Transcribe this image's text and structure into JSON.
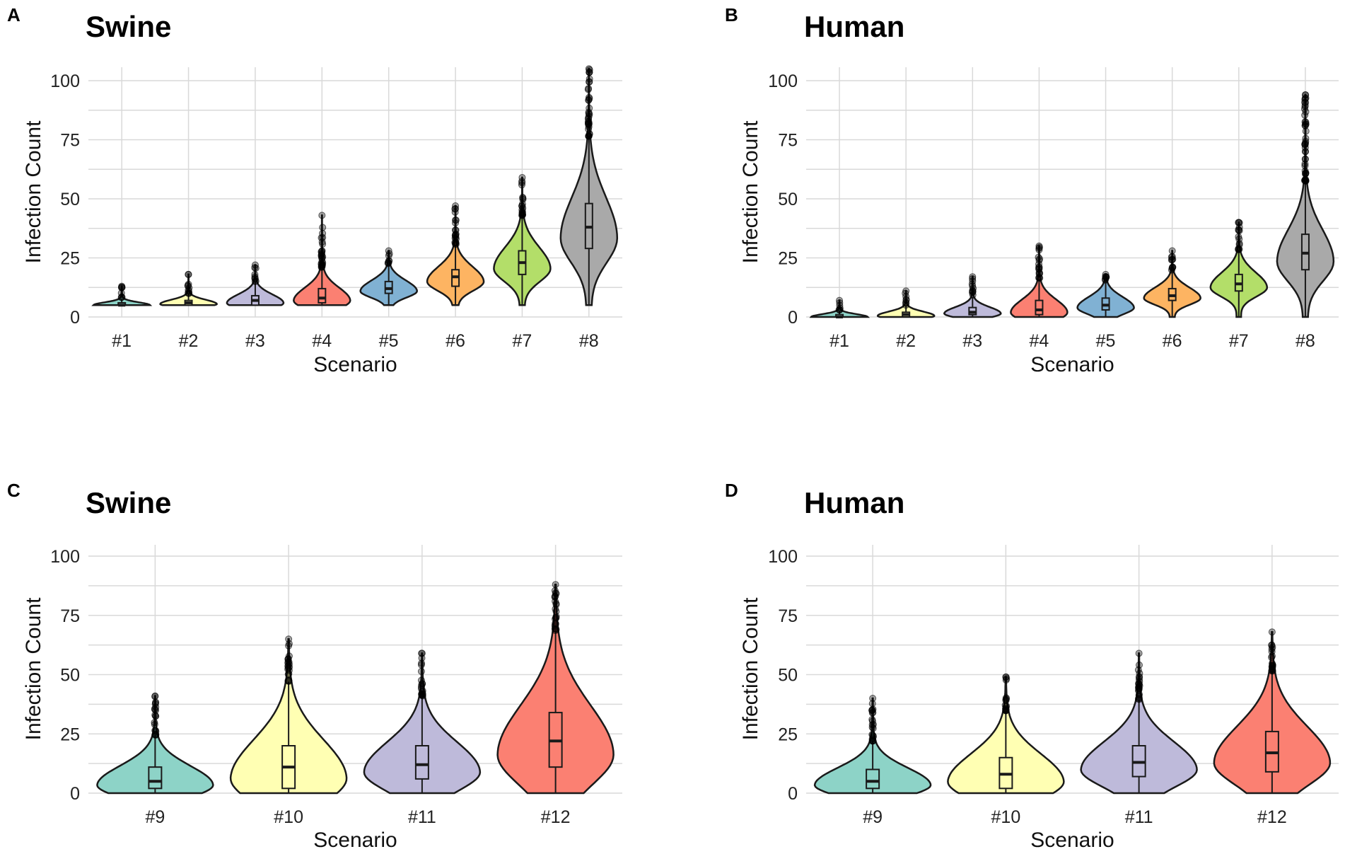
{
  "colors": {
    "teal": "#8dd3c7",
    "yellow": "#ffffb3",
    "lavender": "#bebada",
    "red": "#fb8072",
    "blue": "#80b1d3",
    "orange": "#fdb462",
    "green": "#b3de69",
    "gray": "#a9a9a9",
    "outline": "#1a1a1a"
  },
  "chart_data": [
    {
      "panel": "A",
      "type": "violin",
      "title": "Swine",
      "xlabel": "Scenario",
      "ylabel": "Infection Count",
      "ylim": [
        0,
        105
      ],
      "yticks": [
        0,
        25,
        50,
        75,
        100
      ],
      "categories": [
        "#1",
        "#2",
        "#3",
        "#4",
        "#5",
        "#6",
        "#7",
        "#8"
      ],
      "series": [
        {
          "cat": "#1",
          "min": 5,
          "q1": 5,
          "median": 5,
          "q3": 6,
          "max": 13,
          "fill": "#8dd3c7"
        },
        {
          "cat": "#2",
          "min": 5,
          "q1": 5,
          "median": 6,
          "q3": 7,
          "max": 18,
          "fill": "#ffffb3"
        },
        {
          "cat": "#3",
          "min": 5,
          "q1": 5,
          "median": 7,
          "q3": 9,
          "max": 22,
          "fill": "#bebada"
        },
        {
          "cat": "#4",
          "min": 5,
          "q1": 6,
          "median": 8,
          "q3": 12,
          "max": 43,
          "fill": "#fb8072"
        },
        {
          "cat": "#5",
          "min": 5,
          "q1": 10,
          "median": 12,
          "q3": 15,
          "max": 28,
          "fill": "#80b1d3"
        },
        {
          "cat": "#6",
          "min": 5,
          "q1": 13,
          "median": 17,
          "q3": 20,
          "max": 47,
          "fill": "#fdb462"
        },
        {
          "cat": "#7",
          "min": 5,
          "q1": 18,
          "median": 23,
          "q3": 28,
          "max": 59,
          "fill": "#b3de69"
        },
        {
          "cat": "#8",
          "min": 5,
          "q1": 29,
          "median": 38,
          "q3": 48,
          "max": 105,
          "fill": "#a9a9a9"
        }
      ]
    },
    {
      "panel": "B",
      "type": "violin",
      "title": "Human",
      "xlabel": "Scenario",
      "ylabel": "Infection Count",
      "ylim": [
        0,
        105
      ],
      "yticks": [
        0,
        25,
        50,
        75,
        100
      ],
      "categories": [
        "#1",
        "#2",
        "#3",
        "#4",
        "#5",
        "#6",
        "#7",
        "#8"
      ],
      "series": [
        {
          "cat": "#1",
          "min": 0,
          "q1": 0,
          "median": 0,
          "q3": 1,
          "max": 7,
          "fill": "#8dd3c7"
        },
        {
          "cat": "#2",
          "min": 0,
          "q1": 0,
          "median": 1,
          "q3": 2,
          "max": 11,
          "fill": "#ffffb3"
        },
        {
          "cat": "#3",
          "min": 0,
          "q1": 1,
          "median": 2,
          "q3": 4,
          "max": 17,
          "fill": "#bebada"
        },
        {
          "cat": "#4",
          "min": 0,
          "q1": 1,
          "median": 3,
          "q3": 7,
          "max": 30,
          "fill": "#fb8072"
        },
        {
          "cat": "#5",
          "min": 0,
          "q1": 3,
          "median": 5,
          "q3": 8,
          "max": 18,
          "fill": "#80b1d3"
        },
        {
          "cat": "#6",
          "min": 0,
          "q1": 7,
          "median": 9,
          "q3": 12,
          "max": 28,
          "fill": "#fdb462"
        },
        {
          "cat": "#7",
          "min": 0,
          "q1": 11,
          "median": 14,
          "q3": 18,
          "max": 40,
          "fill": "#b3de69"
        },
        {
          "cat": "#8",
          "min": 0,
          "q1": 20,
          "median": 27,
          "q3": 35,
          "max": 94,
          "fill": "#a9a9a9"
        }
      ]
    },
    {
      "panel": "C",
      "type": "violin",
      "title": "Swine",
      "xlabel": "Scenario",
      "ylabel": "Infection Count",
      "ylim": [
        0,
        100
      ],
      "yticks": [
        0,
        25,
        50,
        75,
        100
      ],
      "categories": [
        "#9",
        "#10",
        "#11",
        "#12"
      ],
      "series": [
        {
          "cat": "#9",
          "min": 0,
          "q1": 2,
          "median": 5,
          "q3": 11,
          "max": 41,
          "fill": "#8dd3c7"
        },
        {
          "cat": "#10",
          "min": 0,
          "q1": 2,
          "median": 11,
          "q3": 20,
          "max": 65,
          "fill": "#ffffb3"
        },
        {
          "cat": "#11",
          "min": 0,
          "q1": 6,
          "median": 12,
          "q3": 20,
          "max": 59,
          "fill": "#bebada"
        },
        {
          "cat": "#12",
          "min": 0,
          "q1": 11,
          "median": 22,
          "q3": 34,
          "max": 88,
          "fill": "#fb8072"
        }
      ]
    },
    {
      "panel": "D",
      "type": "violin",
      "title": "Human",
      "xlabel": "Scenario",
      "ylabel": "Infection Count",
      "ylim": [
        0,
        100
      ],
      "yticks": [
        0,
        25,
        50,
        75,
        100
      ],
      "categories": [
        "#9",
        "#10",
        "#11",
        "#12"
      ],
      "series": [
        {
          "cat": "#9",
          "min": 0,
          "q1": 2,
          "median": 5,
          "q3": 10,
          "max": 40,
          "fill": "#8dd3c7"
        },
        {
          "cat": "#10",
          "min": 0,
          "q1": 2,
          "median": 8,
          "q3": 15,
          "max": 49,
          "fill": "#ffffb3"
        },
        {
          "cat": "#11",
          "min": 0,
          "q1": 7,
          "median": 13,
          "q3": 20,
          "max": 59,
          "fill": "#bebada"
        },
        {
          "cat": "#12",
          "min": 0,
          "q1": 9,
          "median": 17,
          "q3": 26,
          "max": 68,
          "fill": "#fb8072"
        }
      ]
    }
  ]
}
